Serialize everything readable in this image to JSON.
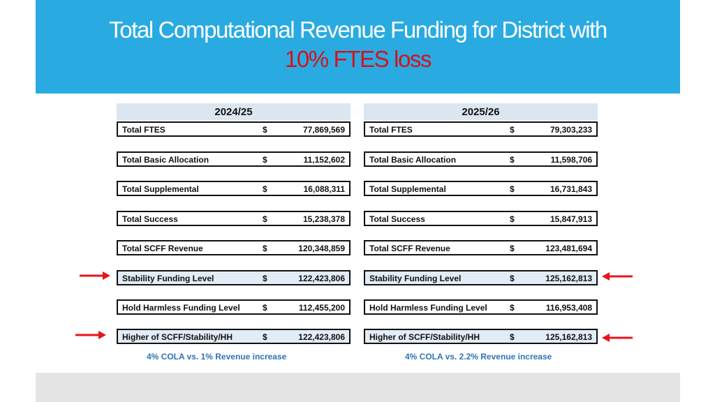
{
  "slide": {
    "title_line1": "Total Computational Revenue Funding for District with",
    "title_line2": "10% FTES loss",
    "accent_color": "#29abe2",
    "highlight_color": "#d6121a"
  },
  "tables": [
    {
      "year": "2024/25",
      "rows": [
        {
          "label": "Total FTES",
          "currency": "$",
          "value": "77,869,569"
        },
        {
          "label": "Total Basic Allocation",
          "currency": "$",
          "value": "11,152,602"
        },
        {
          "label": "Total Supplemental",
          "currency": "$",
          "value": "16,088,311"
        },
        {
          "label": "Total Success",
          "currency": "$",
          "value": "15,238,378"
        },
        {
          "label": "Total SCFF Revenue",
          "currency": "$",
          "value": "120,348,859"
        },
        {
          "label": "Stability Funding Level",
          "currency": "$",
          "value": "122,423,806"
        },
        {
          "label": "Hold Harmless Funding Level",
          "currency": "$",
          "value": "112,455,200"
        },
        {
          "label": "Higher of SCFF/Stability/HH",
          "currency": "$",
          "value": "122,423,806"
        }
      ],
      "note": "4% COLA vs. 1% Revenue increase"
    },
    {
      "year": "2025/26",
      "rows": [
        {
          "label": "Total FTES",
          "currency": "$",
          "value": "79,303,233"
        },
        {
          "label": "Total Basic Allocation",
          "currency": "$",
          "value": "11,598,706"
        },
        {
          "label": "Total Supplemental",
          "currency": "$",
          "value": "16,731,843"
        },
        {
          "label": "Total Success",
          "currency": "$",
          "value": "15,847,913"
        },
        {
          "label": "Total SCFF Revenue",
          "currency": "$",
          "value": "123,481,694"
        },
        {
          "label": "Stability Funding Level",
          "currency": "$",
          "value": "125,162,813"
        },
        {
          "label": "Hold Harmless Funding Level",
          "currency": "$",
          "value": "116,953,408"
        },
        {
          "label": "Higher of SCFF/Stability/HH",
          "currency": "$",
          "value": "125,162,813"
        }
      ],
      "note": "4% COLA vs. 2.2% Revenue increase"
    }
  ],
  "markers": {
    "arrow_color": "#e8141c",
    "arrow_icon": "arrow-icon"
  }
}
